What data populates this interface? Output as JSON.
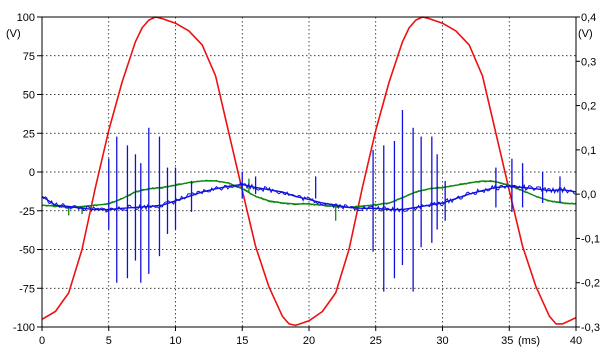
{
  "chart_data": {
    "type": "line",
    "x_unit_label": "(ms)",
    "y_left_unit_label": "(V)",
    "y_right_unit_label": "(V)",
    "xlim": [
      0,
      40
    ],
    "ylim_left": [
      -100,
      100
    ],
    "ylim_right": [
      -0.3,
      0.4
    ],
    "x_ticks": [
      "0",
      "5",
      "10",
      "15",
      "20",
      "25",
      "30",
      "35",
      "40"
    ],
    "y_left_ticks": [
      "100",
      "75",
      "50",
      "25",
      "0",
      "-25",
      "-50",
      "-75",
      "-100"
    ],
    "y_right_ticks": [
      "0,4",
      "0,3",
      "0,2",
      "0,1",
      "0,0",
      "-0,1",
      "-0,2",
      "-0,3"
    ],
    "grid": true,
    "colors": {
      "red": "#ee1111",
      "green": "#118811",
      "blue": "#1111dd"
    },
    "series": [
      {
        "axis": "left",
        "color": "red",
        "x": [
          0,
          1,
          2,
          3,
          4,
          5,
          6,
          7,
          7.5,
          8,
          8.5,
          9,
          10,
          11,
          12,
          13,
          14,
          15,
          16,
          17,
          18,
          18.5,
          19,
          20,
          21,
          22,
          23,
          24,
          25,
          26,
          27,
          27.5,
          28,
          28.5,
          29,
          30,
          31,
          32,
          33,
          34,
          35,
          36,
          37,
          38,
          38.5,
          39,
          40
        ],
        "y": [
          -95,
          -90,
          -78,
          -50,
          -10,
          27,
          58,
          84,
          93,
          98,
          100,
          99,
          96,
          91,
          82,
          62,
          25,
          -12,
          -48,
          -74,
          -93,
          -98,
          -99,
          -96,
          -90,
          -78,
          -50,
          -10,
          27,
          58,
          84,
          93,
          98,
          100,
          99,
          96,
          91,
          82,
          62,
          25,
          -12,
          -48,
          -74,
          -93,
          -98,
          -98,
          -94
        ]
      },
      {
        "axis": "right",
        "color": "green",
        "x": [
          0,
          1,
          2,
          3,
          4,
          5,
          6,
          7,
          8,
          9,
          10,
          11,
          12,
          13,
          14,
          15,
          16,
          17,
          18,
          19,
          20,
          21,
          22,
          23,
          24,
          25,
          26,
          27,
          28,
          29,
          30,
          31,
          32,
          33,
          34,
          35,
          36,
          37,
          38,
          39,
          40
        ],
        "y": [
          -0.025,
          -0.027,
          -0.03,
          -0.028,
          -0.025,
          -0.022,
          -0.01,
          0.005,
          0.012,
          0.015,
          0.02,
          0.026,
          0.03,
          0.03,
          0.025,
          0.012,
          -0.005,
          -0.015,
          -0.02,
          -0.022,
          -0.022,
          -0.025,
          -0.028,
          -0.03,
          -0.027,
          -0.024,
          -0.02,
          -0.008,
          0.005,
          0.012,
          0.015,
          0.02,
          0.025,
          0.03,
          0.028,
          0.02,
          0.008,
          -0.005,
          -0.015,
          -0.02,
          -0.022
        ],
        "spikes": [
          {
            "x": 2,
            "y": -0.048
          },
          {
            "x": 3,
            "y": -0.045
          },
          {
            "x": 15.5,
            "y": 0.035
          },
          {
            "x": 22,
            "y": -0.06
          },
          {
            "x": 27,
            "y": -0.045
          },
          {
            "x": 36,
            "y": 0.04
          }
        ]
      },
      {
        "axis": "right",
        "color": "blue",
        "x": [
          0,
          1,
          2,
          3,
          4,
          5,
          6,
          7,
          8,
          9,
          10,
          11,
          12,
          13,
          14,
          15,
          16,
          17,
          18,
          19,
          20,
          21,
          22,
          23,
          24,
          25,
          26,
          27,
          28,
          29,
          30,
          31,
          32,
          33,
          34,
          35,
          36,
          37,
          38,
          39,
          40
        ],
        "y": [
          -0.005,
          -0.025,
          -0.028,
          -0.032,
          -0.035,
          -0.035,
          -0.032,
          -0.03,
          -0.028,
          -0.025,
          -0.015,
          -0.005,
          0.005,
          0.012,
          0.018,
          0.022,
          0.015,
          0.01,
          0.005,
          -0.005,
          -0.012,
          -0.02,
          -0.025,
          -0.03,
          -0.032,
          -0.032,
          -0.035,
          -0.035,
          -0.03,
          -0.025,
          -0.02,
          -0.01,
          0.0,
          0.008,
          0.015,
          0.018,
          0.015,
          0.012,
          0.008,
          0.01,
          0.005
        ],
        "spikes": [
          {
            "x": 5.0,
            "lo": -0.08,
            "hi": 0.08
          },
          {
            "x": 5.6,
            "lo": -0.2,
            "hi": 0.13
          },
          {
            "x": 6.4,
            "lo": -0.19,
            "hi": 0.11
          },
          {
            "x": 7.0,
            "lo": -0.15,
            "hi": 0.09
          },
          {
            "x": 7.4,
            "lo": -0.2,
            "hi": 0.07
          },
          {
            "x": 8.0,
            "lo": -0.18,
            "hi": 0.15
          },
          {
            "x": 8.8,
            "lo": -0.14,
            "hi": 0.13
          },
          {
            "x": 9.4,
            "lo": -0.09,
            "hi": 0.06
          },
          {
            "x": 10.0,
            "lo": -0.08,
            "hi": 0.06
          },
          {
            "x": 11.2,
            "lo": -0.04,
            "hi": 0.03
          },
          {
            "x": 15.0,
            "lo": -0.01,
            "hi": 0.05
          },
          {
            "x": 16.0,
            "lo": 0.0,
            "hi": 0.04
          },
          {
            "x": 20.5,
            "lo": -0.01,
            "hi": 0.04
          },
          {
            "x": 24.8,
            "lo": -0.13,
            "hi": 0.1
          },
          {
            "x": 25.6,
            "lo": -0.22,
            "hi": 0.11
          },
          {
            "x": 26.4,
            "lo": -0.19,
            "hi": 0.12
          },
          {
            "x": 27.0,
            "lo": -0.16,
            "hi": 0.19
          },
          {
            "x": 27.8,
            "lo": -0.22,
            "hi": 0.15
          },
          {
            "x": 28.4,
            "lo": -0.12,
            "hi": 0.13
          },
          {
            "x": 29.2,
            "lo": -0.11,
            "hi": 0.13
          },
          {
            "x": 29.6,
            "lo": -0.08,
            "hi": 0.09
          },
          {
            "x": 30.2,
            "lo": -0.06,
            "hi": 0.03
          },
          {
            "x": 34.0,
            "lo": -0.03,
            "hi": 0.06
          },
          {
            "x": 35.2,
            "lo": -0.04,
            "hi": 0.08
          },
          {
            "x": 36.0,
            "lo": -0.03,
            "hi": 0.07
          },
          {
            "x": 37.5,
            "lo": -0.02,
            "hi": 0.05
          },
          {
            "x": 38.8,
            "lo": -0.02,
            "hi": 0.04
          }
        ]
      }
    ]
  }
}
